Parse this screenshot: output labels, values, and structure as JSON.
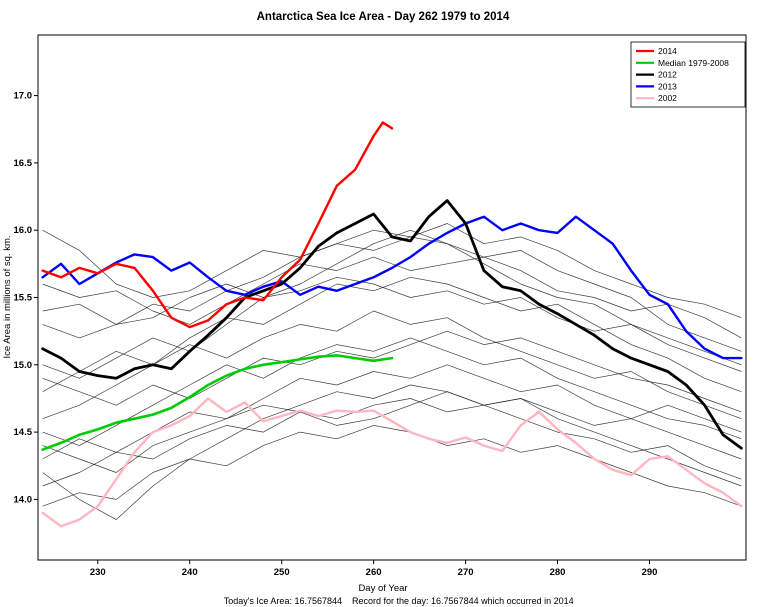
{
  "footer": {
    "today_label": "Today's Ice Area: 16.7567844",
    "record_label": "Record for the day: 16.7567844 which occurred in 2014"
  },
  "chart_data": {
    "type": "line",
    "title": "Antarctica Sea Ice Area - Day 262 1979 to 2014",
    "xlabel": "Day of Year",
    "ylabel": "Ice Area in millions of sq. km.",
    "xlim": [
      223.5,
      300.5
    ],
    "ylim": [
      13.55,
      17.45
    ],
    "xticks": [
      230,
      240,
      250,
      260,
      270,
      280,
      290
    ],
    "yticks": [
      14.0,
      14.5,
      15.0,
      15.5,
      16.0,
      16.5,
      17.0
    ],
    "grid": false,
    "legend": {
      "position": "top-right",
      "entries": [
        {
          "label": "2014",
          "color": "#ff0000"
        },
        {
          "label": "Median 1979-2008",
          "color": "#00cc00"
        },
        {
          "label": "2012",
          "color": "#000000"
        },
        {
          "label": "2013",
          "color": "#0000ff"
        },
        {
          "label": "2002",
          "color": "#ffb6c1"
        }
      ]
    },
    "days_full": [
      224,
      226,
      228,
      230,
      232,
      234,
      236,
      238,
      240,
      242,
      244,
      246,
      248,
      250,
      252,
      254,
      256,
      258,
      260,
      262,
      264,
      266,
      268,
      270,
      272,
      274,
      276,
      278,
      280,
      282,
      284,
      286,
      288,
      290,
      292,
      294,
      296,
      298,
      300
    ],
    "series": [
      {
        "name": "2002",
        "color": "#ffb6c1",
        "width": 2.4,
        "values": [
          13.9,
          13.8,
          13.85,
          13.95,
          14.15,
          14.35,
          14.5,
          14.55,
          14.62,
          14.75,
          14.65,
          14.72,
          14.58,
          14.62,
          14.66,
          14.62,
          14.66,
          14.65,
          14.66,
          14.58,
          14.5,
          14.45,
          14.42,
          14.46,
          14.4,
          14.36,
          14.55,
          14.65,
          14.52,
          14.42,
          14.3,
          14.22,
          14.18,
          14.3,
          14.32,
          14.22,
          14.12,
          14.05,
          13.95
        ]
      },
      {
        "name": "Median 1979-2008",
        "color": "#00cc00",
        "width": 2.6,
        "days": [
          224,
          226,
          228,
          230,
          232,
          234,
          236,
          238,
          240,
          242,
          244,
          246,
          248,
          250,
          252,
          254,
          256,
          258,
          260,
          262
        ],
        "values": [
          14.37,
          14.42,
          14.48,
          14.52,
          14.57,
          14.6,
          14.63,
          14.68,
          14.76,
          14.85,
          14.92,
          14.97,
          15.0,
          15.02,
          15.04,
          15.06,
          15.07,
          15.05,
          15.03,
          15.05
        ]
      },
      {
        "name": "2013",
        "color": "#0000ff",
        "width": 2.4,
        "values": [
          15.65,
          15.75,
          15.6,
          15.68,
          15.76,
          15.82,
          15.8,
          15.7,
          15.76,
          15.65,
          15.55,
          15.52,
          15.58,
          15.62,
          15.52,
          15.58,
          15.55,
          15.6,
          15.65,
          15.72,
          15.8,
          15.9,
          15.98,
          16.05,
          16.1,
          16.0,
          16.05,
          16.0,
          15.98,
          16.1,
          16.0,
          15.9,
          15.7,
          15.52,
          15.45,
          15.25,
          15.12,
          15.05,
          15.05
        ]
      },
      {
        "name": "2012",
        "color": "#000000",
        "width": 2.8,
        "values": [
          15.12,
          15.05,
          14.95,
          14.92,
          14.9,
          14.97,
          15.0,
          14.97,
          15.1,
          15.22,
          15.35,
          15.5,
          15.55,
          15.6,
          15.72,
          15.88,
          15.98,
          16.05,
          16.12,
          15.95,
          15.92,
          16.1,
          16.22,
          16.05,
          15.7,
          15.58,
          15.55,
          15.45,
          15.38,
          15.3,
          15.22,
          15.12,
          15.05,
          15.0,
          14.95,
          14.85,
          14.7,
          14.48,
          14.38
        ]
      },
      {
        "name": "2014",
        "color": "#ff0000",
        "width": 2.4,
        "days": [
          224,
          226,
          228,
          230,
          232,
          234,
          236,
          238,
          240,
          242,
          244,
          246,
          248,
          250,
          252,
          254,
          256,
          258,
          260,
          261,
          262
        ],
        "values": [
          15.7,
          15.65,
          15.72,
          15.68,
          15.75,
          15.72,
          15.55,
          15.35,
          15.28,
          15.33,
          15.45,
          15.5,
          15.48,
          15.65,
          15.78,
          16.05,
          16.33,
          16.45,
          16.7,
          16.8,
          16.7567844
        ]
      }
    ],
    "background_series": {
      "note": "other years 1979-2011, thin black lines",
      "color": "#1a1a1a",
      "width": 0.7,
      "days": [
        224,
        228,
        232,
        236,
        240,
        244,
        248,
        252,
        256,
        260,
        264,
        268,
        272,
        276,
        280,
        284,
        288,
        292,
        296,
        300
      ],
      "series": [
        [
          16.0,
          15.85,
          15.6,
          15.5,
          15.55,
          15.7,
          15.85,
          15.8,
          15.9,
          15.85,
          15.95,
          15.9,
          15.75,
          15.6,
          15.5,
          15.45,
          15.3,
          15.2,
          15.1,
          15.0
        ],
        [
          15.6,
          15.5,
          15.55,
          15.4,
          15.3,
          15.45,
          15.6,
          15.75,
          15.7,
          15.8,
          15.7,
          15.75,
          15.8,
          15.7,
          15.55,
          15.5,
          15.4,
          15.45,
          15.35,
          15.2
        ],
        [
          15.0,
          14.9,
          15.05,
          15.2,
          15.1,
          15.3,
          15.5,
          15.6,
          15.75,
          15.9,
          16.0,
          15.9,
          15.8,
          15.85,
          15.7,
          15.6,
          15.5,
          15.3,
          15.2,
          15.1
        ],
        [
          14.8,
          14.95,
          15.1,
          15.0,
          15.2,
          15.35,
          15.3,
          15.45,
          15.6,
          15.55,
          15.65,
          15.6,
          15.5,
          15.4,
          15.45,
          15.3,
          15.15,
          15.05,
          14.9,
          14.8
        ],
        [
          14.6,
          14.7,
          14.85,
          15.0,
          15.15,
          15.05,
          15.2,
          15.3,
          15.25,
          15.4,
          15.3,
          15.35,
          15.2,
          15.1,
          15.0,
          14.9,
          14.95,
          14.8,
          14.7,
          14.6
        ],
        [
          14.5,
          14.4,
          14.55,
          14.7,
          14.85,
          15.0,
          14.9,
          15.05,
          15.15,
          15.1,
          15.2,
          15.1,
          15.0,
          15.05,
          14.9,
          14.8,
          14.7,
          14.6,
          14.55,
          14.45
        ],
        [
          14.3,
          14.45,
          14.35,
          14.5,
          14.65,
          14.6,
          14.75,
          14.9,
          14.85,
          14.95,
          14.9,
          15.0,
          14.9,
          14.8,
          14.85,
          14.7,
          14.6,
          14.5,
          14.4,
          14.3
        ],
        [
          14.1,
          14.2,
          14.35,
          14.3,
          14.45,
          14.55,
          14.5,
          14.65,
          14.6,
          14.7,
          14.75,
          14.65,
          14.7,
          14.6,
          14.5,
          14.45,
          14.35,
          14.4,
          14.25,
          14.15
        ],
        [
          13.95,
          14.05,
          14.0,
          14.2,
          14.3,
          14.25,
          14.4,
          14.5,
          14.45,
          14.55,
          14.5,
          14.4,
          14.45,
          14.35,
          14.4,
          14.3,
          14.2,
          14.1,
          14.05,
          13.95
        ],
        [
          14.4,
          14.3,
          14.2,
          14.4,
          14.5,
          14.6,
          14.7,
          14.65,
          14.55,
          14.6,
          14.7,
          14.8,
          14.7,
          14.75,
          14.65,
          14.55,
          14.6,
          14.7,
          14.6,
          14.5
        ],
        [
          14.2,
          14.0,
          13.85,
          14.1,
          14.3,
          14.45,
          14.6,
          14.7,
          14.8,
          14.75,
          14.85,
          14.8,
          14.7,
          14.75,
          14.6,
          14.5,
          14.4,
          14.3,
          14.2,
          14.1
        ],
        [
          15.3,
          15.2,
          15.3,
          15.45,
          15.4,
          15.55,
          15.65,
          15.8,
          15.9,
          16.0,
          15.95,
          16.05,
          15.9,
          15.95,
          15.85,
          15.7,
          15.6,
          15.5,
          15.45,
          15.35
        ],
        [
          15.4,
          15.45,
          15.3,
          15.35,
          15.5,
          15.6,
          15.5,
          15.55,
          15.65,
          15.6,
          15.5,
          15.55,
          15.45,
          15.5,
          15.35,
          15.25,
          15.3,
          15.15,
          15.05,
          14.95
        ],
        [
          14.9,
          14.8,
          14.7,
          14.85,
          14.75,
          14.9,
          15.05,
          15.0,
          15.1,
          15.05,
          15.15,
          15.25,
          15.15,
          15.2,
          15.1,
          15.0,
          14.9,
          14.85,
          14.75,
          14.65
        ]
      ]
    }
  }
}
